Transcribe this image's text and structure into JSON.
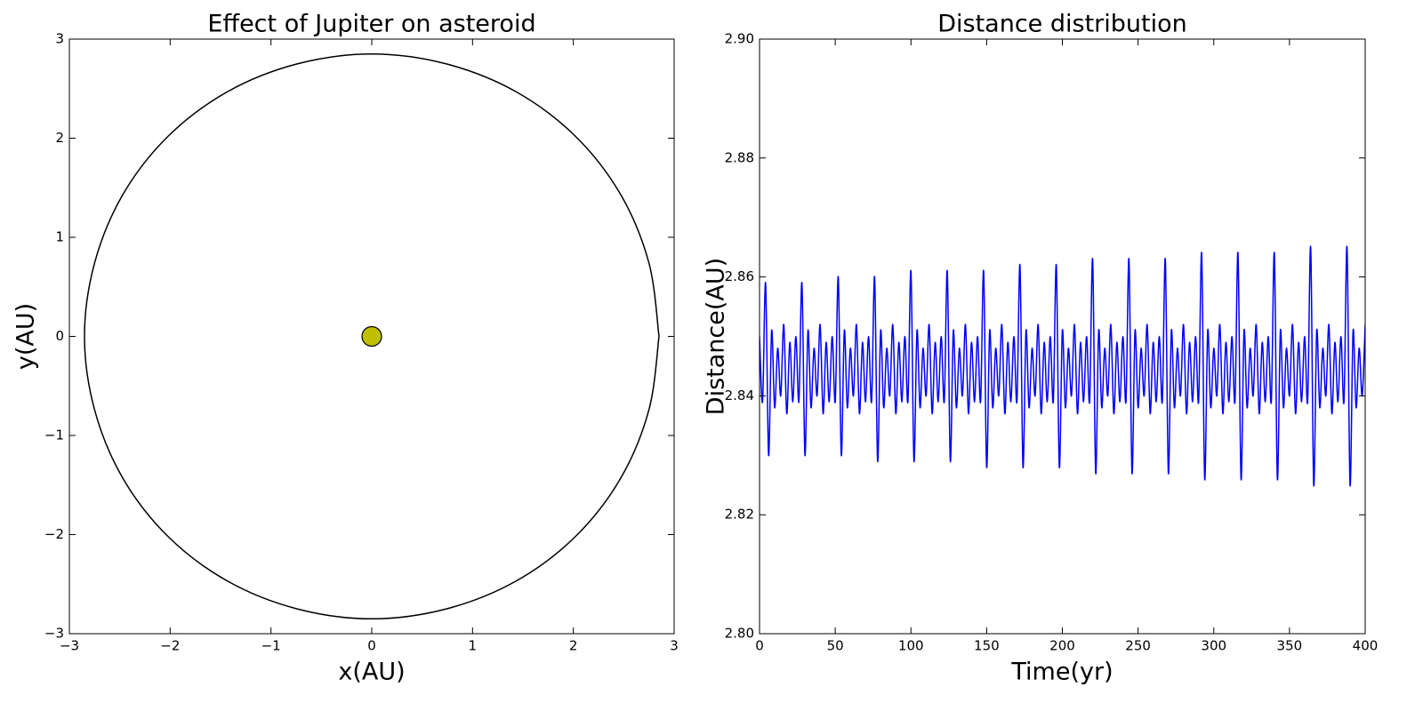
{
  "chart_data": [
    {
      "type": "line",
      "title": "Effect of Jupiter on asteroid",
      "x_label": "x(AU)",
      "y_label": "y(AU)",
      "xlim": [
        -3,
        3
      ],
      "ylim": [
        -3,
        3
      ],
      "xticks": [
        {
          "value": -3,
          "label": "−3"
        },
        {
          "value": -2,
          "label": "−2"
        },
        {
          "value": -1,
          "label": "−1"
        },
        0,
        1,
        2,
        3
      ],
      "yticks": [
        {
          "value": -3,
          "label": "−3"
        },
        {
          "value": -2,
          "label": "−2"
        },
        {
          "value": -1,
          "label": "−1"
        },
        0,
        1,
        2,
        3
      ],
      "series": [
        {
          "color": "#000000",
          "x": [
            2.85,
            2.75,
            2.47,
            2.02,
            1.43,
            0.74,
            0,
            -0.74,
            -1.43,
            -2.02,
            -2.47,
            -2.75,
            -2.85,
            -2.75,
            -2.47,
            -2.02,
            -1.43,
            -0.74,
            0,
            0.74,
            1.43,
            2.02,
            2.47,
            2.75,
            2.85
          ],
          "values": [
            0,
            0.74,
            1.43,
            2.02,
            2.47,
            2.75,
            2.85,
            2.75,
            2.47,
            2.02,
            1.43,
            0.74,
            0,
            -0.74,
            -1.43,
            -2.02,
            -2.47,
            -2.75,
            -2.85,
            -2.75,
            -2.47,
            -2.02,
            -1.43,
            -0.74,
            0
          ]
        },
        {
          "color": "#bfbf00",
          "x": [
            0
          ],
          "values": [
            0
          ]
        }
      ]
    },
    {
      "type": "line",
      "title": "Distance distribution",
      "x_label": "Time(yr)",
      "y_label": "Distance(AU)",
      "xlim": [
        0,
        400
      ],
      "ylim": [
        2.8,
        2.9
      ],
      "xticks": [
        0,
        50,
        100,
        150,
        200,
        250,
        300,
        350,
        400
      ],
      "yticks": [
        {
          "value": 2.8,
          "label": "2.80"
        },
        2.82,
        2.84,
        2.86,
        2.88,
        {
          "value": 2.9,
          "label": "2.90"
        }
      ],
      "x": [
        0,
        2,
        4,
        6,
        8,
        10,
        12,
        14,
        16,
        18,
        20,
        22,
        24,
        26,
        28,
        30,
        32,
        34,
        36,
        38,
        40,
        42,
        44,
        46,
        48,
        50,
        52,
        54,
        56,
        58,
        60,
        62,
        64,
        66,
        68,
        70,
        72,
        74,
        76,
        78,
        80,
        82,
        84,
        86,
        88,
        90,
        92,
        94,
        96,
        98,
        100,
        102,
        104,
        106,
        108,
        110,
        112,
        114,
        116,
        118,
        120,
        122,
        124,
        126,
        128,
        130,
        132,
        134,
        136,
        138,
        140,
        142,
        144,
        146,
        148,
        150,
        152,
        154,
        156,
        158,
        160,
        162,
        164,
        166,
        168,
        170,
        172,
        174,
        176,
        178,
        180,
        182,
        184,
        186,
        188,
        190,
        192,
        194,
        196,
        198,
        200,
        202,
        204,
        206,
        208,
        210,
        212,
        214,
        216,
        218,
        220,
        222,
        224,
        226,
        228,
        230,
        232,
        234,
        236,
        238,
        240,
        242,
        244,
        246,
        248,
        250,
        252,
        254,
        256,
        258,
        260,
        262,
        264,
        266,
        268,
        270,
        272,
        274,
        276,
        278,
        280,
        282,
        284,
        286,
        288,
        290,
        292,
        294,
        296,
        298,
        300,
        302,
        304,
        306,
        308,
        310,
        312,
        314,
        316,
        318,
        320,
        322,
        324,
        326,
        328,
        330,
        332,
        334,
        336,
        338,
        340,
        342,
        344,
        346,
        348,
        350,
        352,
        354,
        356,
        358,
        360,
        362,
        364,
        366,
        368,
        370,
        372,
        374,
        376,
        378,
        380,
        382,
        384,
        386,
        388,
        390,
        392,
        394,
        396,
        398,
        400
      ],
      "series": [
        {
          "color": "#0000ff",
          "values": [
            2.85,
            2.839,
            2.859,
            2.83,
            2.851,
            2.838,
            2.848,
            2.84,
            2.852,
            2.837,
            2.849,
            2.839,
            2.85,
            2.839,
            2.859,
            2.83,
            2.851,
            2.838,
            2.848,
            2.84,
            2.852,
            2.837,
            2.849,
            2.839,
            2.85,
            2.839,
            2.86,
            2.83,
            2.851,
            2.838,
            2.848,
            2.84,
            2.852,
            2.837,
            2.849,
            2.839,
            2.85,
            2.839,
            2.86,
            2.829,
            2.851,
            2.838,
            2.848,
            2.84,
            2.852,
            2.837,
            2.849,
            2.839,
            2.85,
            2.839,
            2.861,
            2.829,
            2.851,
            2.838,
            2.848,
            2.84,
            2.852,
            2.837,
            2.849,
            2.839,
            2.85,
            2.839,
            2.861,
            2.829,
            2.851,
            2.838,
            2.848,
            2.84,
            2.852,
            2.837,
            2.849,
            2.839,
            2.85,
            2.839,
            2.861,
            2.828,
            2.851,
            2.838,
            2.848,
            2.84,
            2.852,
            2.837,
            2.849,
            2.839,
            2.85,
            2.839,
            2.862,
            2.828,
            2.851,
            2.838,
            2.848,
            2.84,
            2.852,
            2.837,
            2.849,
            2.839,
            2.85,
            2.839,
            2.862,
            2.828,
            2.851,
            2.838,
            2.848,
            2.84,
            2.852,
            2.837,
            2.849,
            2.839,
            2.85,
            2.839,
            2.863,
            2.827,
            2.851,
            2.838,
            2.848,
            2.84,
            2.852,
            2.837,
            2.849,
            2.839,
            2.85,
            2.839,
            2.863,
            2.827,
            2.851,
            2.838,
            2.848,
            2.84,
            2.852,
            2.837,
            2.849,
            2.839,
            2.85,
            2.839,
            2.863,
            2.827,
            2.851,
            2.838,
            2.848,
            2.84,
            2.852,
            2.837,
            2.849,
            2.839,
            2.85,
            2.839,
            2.864,
            2.826,
            2.851,
            2.838,
            2.848,
            2.84,
            2.852,
            2.837,
            2.849,
            2.839,
            2.85,
            2.839,
            2.864,
            2.826,
            2.851,
            2.838,
            2.848,
            2.84,
            2.852,
            2.837,
            2.849,
            2.839,
            2.85,
            2.839,
            2.864,
            2.826,
            2.851,
            2.838,
            2.848,
            2.84,
            2.852,
            2.837,
            2.849,
            2.839,
            2.85,
            2.839,
            2.865,
            2.825,
            2.851,
            2.838,
            2.848,
            2.84,
            2.852,
            2.837,
            2.849,
            2.839,
            2.85,
            2.839,
            2.865,
            2.825,
            2.851,
            2.838,
            2.848,
            2.84,
            2.852
          ]
        }
      ]
    }
  ]
}
